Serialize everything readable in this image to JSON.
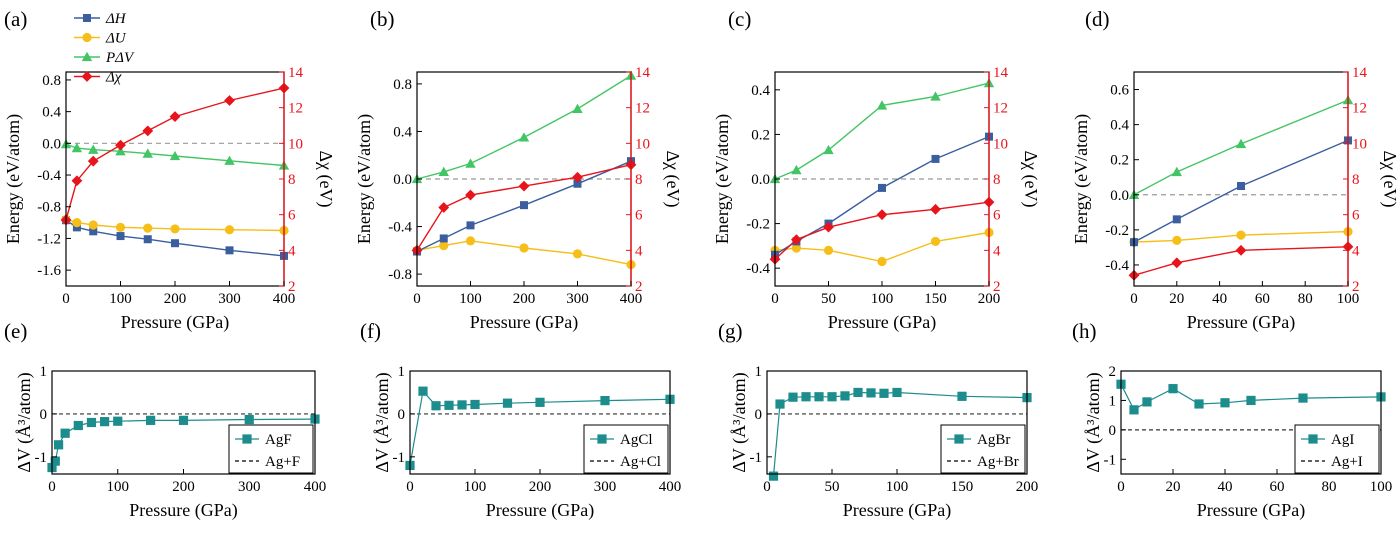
{
  "figure": {
    "title": "",
    "panel_labels": [
      "(a)",
      "(b)",
      "(c)",
      "(d)",
      "(e)",
      "(f)",
      "(g)",
      "(h)"
    ]
  },
  "colors": {
    "dH": "#3a5e9e",
    "dU": "#f6be19",
    "PdV": "#43c565",
    "dchi": "#e8141b",
    "dV": "#1c8c8c",
    "axis": "#000000",
    "right_axis": "#e8141b",
    "zero_line": "#999999"
  },
  "legend_top": [
    {
      "key": "dH",
      "label": "ΔH",
      "marker": "square"
    },
    {
      "key": "dU",
      "label": "ΔU",
      "marker": "circle"
    },
    {
      "key": "PdV",
      "label": "PΔV",
      "marker": "triangle"
    },
    {
      "key": "dchi",
      "label": "Δχ",
      "marker": "diamond"
    }
  ],
  "chart_data": [
    {
      "panel": "(a)",
      "type": "line",
      "xlabel": "Pressure (GPa)",
      "ylabel": "Energy (eV/atom)",
      "y2label": "Δχ (eV)",
      "xlim": [
        0,
        400
      ],
      "ylim": [
        -1.8,
        0.9
      ],
      "y2lim": [
        2,
        14
      ],
      "xticks": [
        0,
        100,
        200,
        300,
        400
      ],
      "yticks": [
        -1.6,
        -1.2,
        -0.8,
        -0.4,
        0.0,
        0.4,
        0.8
      ],
      "y2ticks": [
        2,
        4,
        6,
        8,
        10,
        12,
        14
      ],
      "hline": 0,
      "series": [
        {
          "key": "dH",
          "marker": "square",
          "axis": "left",
          "x": [
            0,
            20,
            50,
            100,
            150,
            200,
            300,
            400
          ],
          "y": [
            -0.97,
            -1.06,
            -1.11,
            -1.17,
            -1.21,
            -1.26,
            -1.35,
            -1.42
          ]
        },
        {
          "key": "dU",
          "marker": "circle",
          "axis": "left",
          "x": [
            0,
            20,
            50,
            100,
            150,
            200,
            300,
            400
          ],
          "y": [
            -0.96,
            -1.0,
            -1.03,
            -1.06,
            -1.07,
            -1.08,
            -1.09,
            -1.1
          ]
        },
        {
          "key": "PdV",
          "marker": "triangle",
          "axis": "left",
          "x": [
            0,
            20,
            50,
            100,
            150,
            200,
            300,
            400
          ],
          "y": [
            -0.01,
            -0.06,
            -0.08,
            -0.1,
            -0.13,
            -0.16,
            -0.22,
            -0.28
          ]
        },
        {
          "key": "dchi",
          "marker": "diamond",
          "axis": "right",
          "x": [
            0,
            20,
            50,
            100,
            150,
            200,
            300,
            400
          ],
          "y": [
            5.7,
            7.9,
            9.0,
            9.9,
            10.7,
            11.5,
            12.4,
            13.1
          ]
        }
      ]
    },
    {
      "panel": "(b)",
      "type": "line",
      "xlabel": "Pressure (GPa)",
      "ylabel": "Energy (eV/atom)",
      "y2label": "Δχ (eV)",
      "xlim": [
        0,
        400
      ],
      "ylim": [
        -0.9,
        0.9
      ],
      "y2lim": [
        2,
        14
      ],
      "xticks": [
        0,
        100,
        200,
        300,
        400
      ],
      "yticks": [
        -0.8,
        -0.4,
        0.0,
        0.4,
        0.8
      ],
      "y2ticks": [
        2,
        4,
        6,
        8,
        10,
        12,
        14
      ],
      "hline": 0,
      "series": [
        {
          "key": "dU",
          "marker": "circle",
          "axis": "left",
          "x": [
            0,
            50,
            100,
            200,
            300,
            400
          ],
          "y": [
            -0.6,
            -0.56,
            -0.52,
            -0.58,
            -0.63,
            -0.72
          ]
        },
        {
          "key": "dH",
          "marker": "square",
          "axis": "left",
          "x": [
            0,
            50,
            100,
            200,
            300,
            400
          ],
          "y": [
            -0.61,
            -0.5,
            -0.39,
            -0.22,
            -0.04,
            0.15
          ]
        },
        {
          "key": "PdV",
          "marker": "triangle",
          "axis": "left",
          "x": [
            0,
            50,
            100,
            200,
            300,
            400
          ],
          "y": [
            0.0,
            0.06,
            0.13,
            0.35,
            0.59,
            0.87
          ]
        },
        {
          "key": "dchi",
          "marker": "diamond",
          "axis": "right",
          "x": [
            0,
            50,
            100,
            200,
            300,
            400
          ],
          "y": [
            4.0,
            6.4,
            7.1,
            7.6,
            8.1,
            8.8
          ]
        }
      ]
    },
    {
      "panel": "(c)",
      "type": "line",
      "xlabel": "Pressure (GPa)",
      "ylabel": "Energy (eV/atom)",
      "y2label": "Δχ (eV)",
      "xlim": [
        0,
        200
      ],
      "ylim": [
        -0.48,
        0.48
      ],
      "y2lim": [
        2,
        14
      ],
      "xticks": [
        0,
        50,
        100,
        150,
        200
      ],
      "yticks": [
        -0.4,
        -0.2,
        0.0,
        0.2,
        0.4
      ],
      "y2ticks": [
        2,
        4,
        6,
        8,
        10,
        12,
        14
      ],
      "hline": 0,
      "series": [
        {
          "key": "dU",
          "marker": "circle",
          "axis": "left",
          "x": [
            0,
            20,
            50,
            100,
            150,
            200
          ],
          "y": [
            -0.32,
            -0.31,
            -0.32,
            -0.37,
            -0.28,
            -0.24
          ]
        },
        {
          "key": "dH",
          "marker": "square",
          "axis": "left",
          "x": [
            0,
            20,
            50,
            100,
            150,
            200
          ],
          "y": [
            -0.34,
            -0.28,
            -0.2,
            -0.04,
            0.09,
            0.19
          ]
        },
        {
          "key": "PdV",
          "marker": "triangle",
          "axis": "left",
          "x": [
            0,
            20,
            50,
            100,
            150,
            200
          ],
          "y": [
            0.0,
            0.04,
            0.13,
            0.33,
            0.37,
            0.43
          ]
        },
        {
          "key": "dchi",
          "marker": "diamond",
          "axis": "right",
          "x": [
            0,
            20,
            50,
            100,
            150,
            200
          ],
          "y": [
            3.5,
            4.6,
            5.3,
            6.0,
            6.3,
            6.7
          ]
        }
      ]
    },
    {
      "panel": "(d)",
      "type": "line",
      "xlabel": "Pressure (GPa)",
      "ylabel": "Energy (eV/atom)",
      "y2label": "Δχ (eV)",
      "xlim": [
        0,
        100
      ],
      "ylim": [
        -0.52,
        0.7
      ],
      "y2lim": [
        2,
        14
      ],
      "xticks": [
        0,
        20,
        40,
        60,
        80,
        100
      ],
      "yticks": [
        -0.4,
        -0.2,
        0.0,
        0.2,
        0.4,
        0.6
      ],
      "y2ticks": [
        2,
        4,
        6,
        8,
        10,
        12,
        14
      ],
      "hline": 0,
      "series": [
        {
          "key": "dU",
          "marker": "circle",
          "axis": "left",
          "x": [
            0,
            20,
            50,
            100
          ],
          "y": [
            -0.27,
            -0.26,
            -0.23,
            -0.21
          ]
        },
        {
          "key": "dH",
          "marker": "square",
          "axis": "left",
          "x": [
            0,
            20,
            50,
            100
          ],
          "y": [
            -0.27,
            -0.14,
            0.05,
            0.31
          ]
        },
        {
          "key": "PdV",
          "marker": "triangle",
          "axis": "left",
          "x": [
            0,
            20,
            50,
            100
          ],
          "y": [
            0.0,
            0.13,
            0.29,
            0.54
          ]
        },
        {
          "key": "dchi",
          "marker": "diamond",
          "axis": "right",
          "x": [
            0,
            20,
            50,
            100
          ],
          "y": [
            2.6,
            3.3,
            4.0,
            4.2
          ]
        }
      ]
    },
    {
      "panel": "(e)",
      "type": "line",
      "xlabel": "Pressure (GPa)",
      "ylabel": "ΔV (Å³/atom)",
      "xlim": [
        0,
        400
      ],
      "ylim": [
        -1.4,
        1.0
      ],
      "xticks": [
        0,
        100,
        200,
        300,
        400
      ],
      "yticks": [
        -1,
        0,
        1
      ],
      "hline": 0,
      "legend": [
        "AgF",
        "Ag+F"
      ],
      "series": [
        {
          "name": "AgF",
          "key": "dV",
          "marker": "square",
          "x": [
            0,
            5,
            10,
            20,
            40,
            60,
            80,
            100,
            150,
            200,
            300,
            400
          ],
          "y": [
            -1.25,
            -1.1,
            -0.72,
            -0.45,
            -0.27,
            -0.2,
            -0.18,
            -0.17,
            -0.15,
            -0.15,
            -0.13,
            -0.12
          ]
        }
      ]
    },
    {
      "panel": "(f)",
      "type": "line",
      "xlabel": "Pressure (GPa)",
      "ylabel": "ΔV (Å³/atom)",
      "xlim": [
        0,
        400
      ],
      "ylim": [
        -1.4,
        1.0
      ],
      "xticks": [
        0,
        100,
        200,
        300,
        400
      ],
      "yticks": [
        -1,
        0,
        1
      ],
      "hline": 0,
      "legend": [
        "AgCl",
        "Ag+Cl"
      ],
      "series": [
        {
          "name": "AgCl",
          "key": "dV",
          "marker": "square",
          "x": [
            0,
            20,
            40,
            60,
            80,
            100,
            150,
            200,
            300,
            400
          ],
          "y": [
            -1.2,
            0.53,
            0.19,
            0.2,
            0.21,
            0.22,
            0.25,
            0.27,
            0.31,
            0.34
          ]
        }
      ]
    },
    {
      "panel": "(g)",
      "type": "line",
      "xlabel": "Pressure (GPa)",
      "ylabel": "ΔV (Å³/atom)",
      "xlim": [
        0,
        200
      ],
      "ylim": [
        -1.4,
        1.0
      ],
      "xticks": [
        0,
        50,
        100,
        150,
        200
      ],
      "yticks": [
        -1,
        0,
        1
      ],
      "hline": 0,
      "legend": [
        "AgBr",
        "Ag+Br"
      ],
      "series": [
        {
          "name": "AgBr",
          "key": "dV",
          "marker": "square",
          "x": [
            5,
            10,
            20,
            30,
            40,
            50,
            60,
            70,
            80,
            90,
            100,
            150,
            200
          ],
          "y": [
            -1.45,
            0.23,
            0.39,
            0.4,
            0.4,
            0.4,
            0.42,
            0.5,
            0.49,
            0.48,
            0.5,
            0.41,
            0.38
          ]
        }
      ]
    },
    {
      "panel": "(h)",
      "type": "line",
      "xlabel": "Pressure (GPa)",
      "ylabel": "ΔV (Å³/atom)",
      "xlim": [
        0,
        100
      ],
      "ylim": [
        -1.5,
        2.0
      ],
      "xticks": [
        0,
        20,
        40,
        60,
        80,
        100
      ],
      "yticks": [
        -1,
        0,
        1,
        2
      ],
      "hline": 0,
      "legend": [
        "AgI",
        "Ag+I"
      ],
      "series": [
        {
          "name": "AgI",
          "key": "dV",
          "marker": "square",
          "x": [
            0,
            5,
            10,
            20,
            30,
            40,
            50,
            70,
            100
          ],
          "y": [
            1.55,
            0.68,
            0.95,
            1.4,
            0.88,
            0.92,
            1.0,
            1.08,
            1.12
          ]
        }
      ]
    }
  ]
}
